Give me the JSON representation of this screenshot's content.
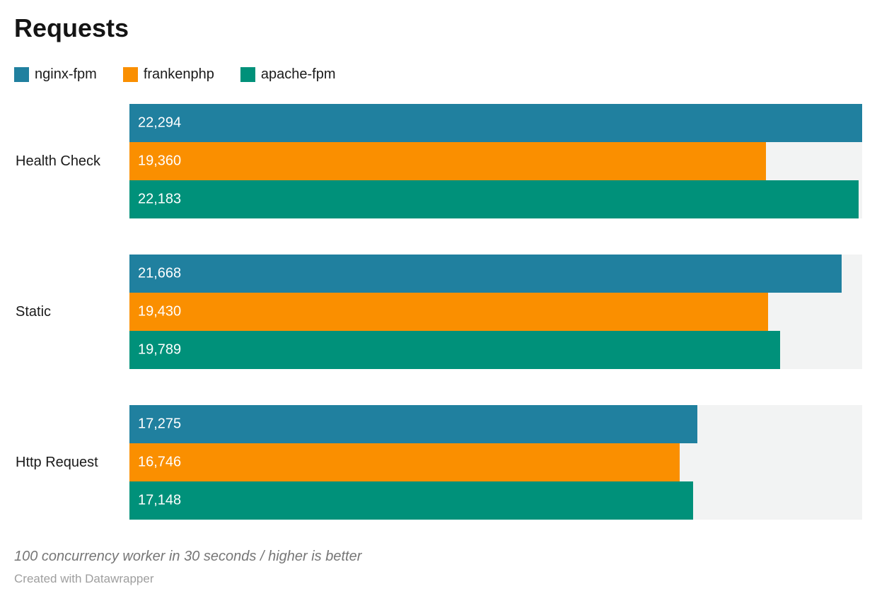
{
  "title": "Requests",
  "footer": {
    "note": "100 concurrency worker in 30 seconds / higher is better",
    "attribution": "Created with Datawrapper"
  },
  "chart_data": {
    "type": "bar",
    "orientation": "horizontal",
    "title": "Requests",
    "categories": [
      "Health Check",
      "Static",
      "Http Request"
    ],
    "series": [
      {
        "name": "nginx-fpm",
        "color": "#20809f",
        "values": [
          22294,
          21668,
          17275
        ],
        "labels": [
          "22,294",
          "21,668",
          "17,275"
        ]
      },
      {
        "name": "frankenphp",
        "color": "#fa8f00",
        "values": [
          19360,
          19430,
          16746
        ],
        "labels": [
          "19,360",
          "19,430",
          "16,746"
        ]
      },
      {
        "name": "apache-fpm",
        "color": "#00917a",
        "values": [
          22183,
          19789,
          17148
        ],
        "labels": [
          "22,183",
          "19,789",
          "17,148"
        ]
      }
    ],
    "xmax": 22294,
    "xmin": 0,
    "value_labels_inside": true,
    "track_color": "#f2f3f3",
    "legend_position": "top",
    "grid": false,
    "note": "100 concurrency worker in 30 seconds / higher is better",
    "attribution": "Created with Datawrapper"
  }
}
